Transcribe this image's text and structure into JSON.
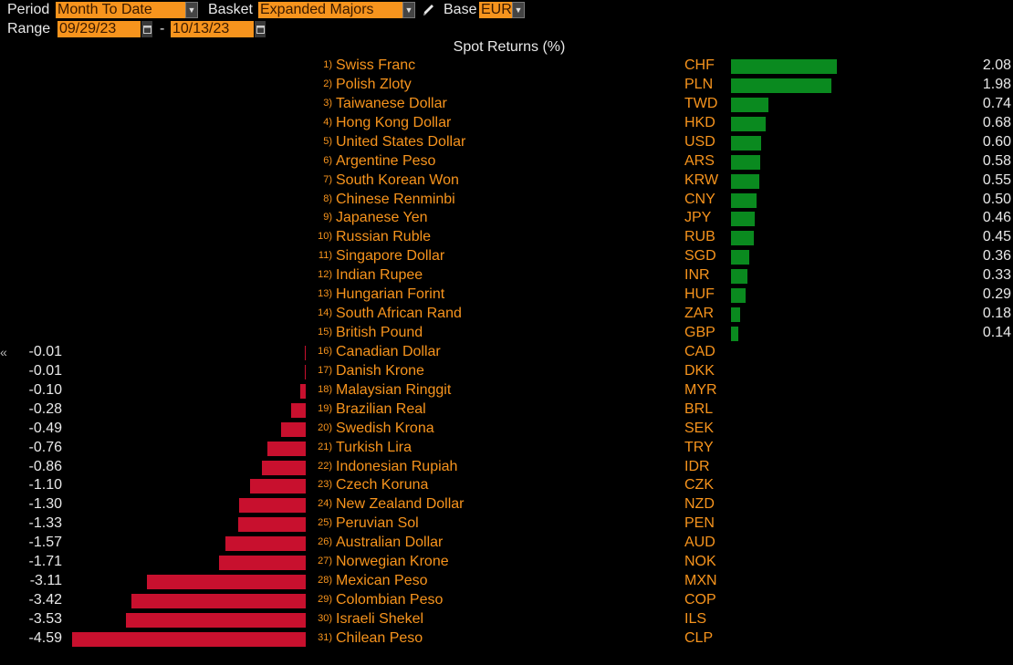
{
  "toolbar": {
    "period_label": "Period",
    "period_value": "Month To Date",
    "basket_label": "Basket",
    "basket_value": "Expanded Majors",
    "base_label": "Base",
    "base_value": "EUR",
    "range_label": "Range",
    "range_start": "09/29/23",
    "range_sep": "-",
    "range_end": "10/13/23"
  },
  "chart_title": "Spot Returns (%)",
  "colors": {
    "positive": "#0a8a1f",
    "negative": "#c8102e",
    "accent": "#f7941d"
  },
  "chart_data": {
    "type": "bar",
    "title": "Spot Returns (%)",
    "orientation": "horizontal",
    "rows": [
      {
        "rank": "1)",
        "name": "Swiss Franc",
        "code": "CHF",
        "value": 2.08,
        "label": "2.08"
      },
      {
        "rank": "2)",
        "name": "Polish Zloty",
        "code": "PLN",
        "value": 1.98,
        "label": "1.98"
      },
      {
        "rank": "3)",
        "name": "Taiwanese Dollar",
        "code": "TWD",
        "value": 0.74,
        "label": "0.74"
      },
      {
        "rank": "4)",
        "name": "Hong Kong Dollar",
        "code": "HKD",
        "value": 0.68,
        "label": "0.68"
      },
      {
        "rank": "5)",
        "name": "United States Dollar",
        "code": "USD",
        "value": 0.6,
        "label": "0.60"
      },
      {
        "rank": "6)",
        "name": "Argentine Peso",
        "code": "ARS",
        "value": 0.58,
        "label": "0.58"
      },
      {
        "rank": "7)",
        "name": "South Korean Won",
        "code": "KRW",
        "value": 0.55,
        "label": "0.55"
      },
      {
        "rank": "8)",
        "name": "Chinese Renminbi",
        "code": "CNY",
        "value": 0.5,
        "label": "0.50"
      },
      {
        "rank": "9)",
        "name": "Japanese Yen",
        "code": "JPY",
        "value": 0.46,
        "label": "0.46"
      },
      {
        "rank": "10)",
        "name": "Russian Ruble",
        "code": "RUB",
        "value": 0.45,
        "label": "0.45"
      },
      {
        "rank": "11)",
        "name": "Singapore Dollar",
        "code": "SGD",
        "value": 0.36,
        "label": "0.36"
      },
      {
        "rank": "12)",
        "name": "Indian Rupee",
        "code": "INR",
        "value": 0.33,
        "label": "0.33"
      },
      {
        "rank": "13)",
        "name": "Hungarian Forint",
        "code": "HUF",
        "value": 0.29,
        "label": "0.29"
      },
      {
        "rank": "14)",
        "name": "South African Rand",
        "code": "ZAR",
        "value": 0.18,
        "label": "0.18"
      },
      {
        "rank": "15)",
        "name": "British Pound",
        "code": "GBP",
        "value": 0.14,
        "label": "0.14"
      },
      {
        "rank": "16)",
        "name": "Canadian Dollar",
        "code": "CAD",
        "value": -0.01,
        "label": "-0.01"
      },
      {
        "rank": "17)",
        "name": "Danish Krone",
        "code": "DKK",
        "value": -0.01,
        "label": "-0.01"
      },
      {
        "rank": "18)",
        "name": "Malaysian Ringgit",
        "code": "MYR",
        "value": -0.1,
        "label": "-0.10"
      },
      {
        "rank": "19)",
        "name": "Brazilian Real",
        "code": "BRL",
        "value": -0.28,
        "label": "-0.28"
      },
      {
        "rank": "20)",
        "name": "Swedish Krona",
        "code": "SEK",
        "value": -0.49,
        "label": "-0.49"
      },
      {
        "rank": "21)",
        "name": "Turkish Lira",
        "code": "TRY",
        "value": -0.76,
        "label": "-0.76"
      },
      {
        "rank": "22)",
        "name": "Indonesian Rupiah",
        "code": "IDR",
        "value": -0.86,
        "label": "-0.86"
      },
      {
        "rank": "23)",
        "name": "Czech Koruna",
        "code": "CZK",
        "value": -1.1,
        "label": "-1.10"
      },
      {
        "rank": "24)",
        "name": "New Zealand Dollar",
        "code": "NZD",
        "value": -1.3,
        "label": "-1.30"
      },
      {
        "rank": "25)",
        "name": "Peruvian Sol",
        "code": "PEN",
        "value": -1.33,
        "label": "-1.33"
      },
      {
        "rank": "26)",
        "name": "Australian Dollar",
        "code": "AUD",
        "value": -1.57,
        "label": "-1.57"
      },
      {
        "rank": "27)",
        "name": "Norwegian Krone",
        "code": "NOK",
        "value": -1.71,
        "label": "-1.71"
      },
      {
        "rank": "28)",
        "name": "Mexican Peso",
        "code": "MXN",
        "value": -3.11,
        "label": "-3.11"
      },
      {
        "rank": "29)",
        "name": "Colombian Peso",
        "code": "COP",
        "value": -3.42,
        "label": "-3.42"
      },
      {
        "rank": "30)",
        "name": "Israeli Shekel",
        "code": "ILS",
        "value": -3.53,
        "label": "-3.53"
      },
      {
        "rank": "31)",
        "name": "Chilean Peso",
        "code": "CLP",
        "value": -4.59,
        "label": "-4.59"
      }
    ]
  },
  "icons": {
    "dropdown": "chevron-down-icon",
    "edit": "pencil-icon",
    "calendar": "calendar-icon",
    "collapse": "double-chevron-left-icon",
    "collapse_glyph": "«"
  }
}
